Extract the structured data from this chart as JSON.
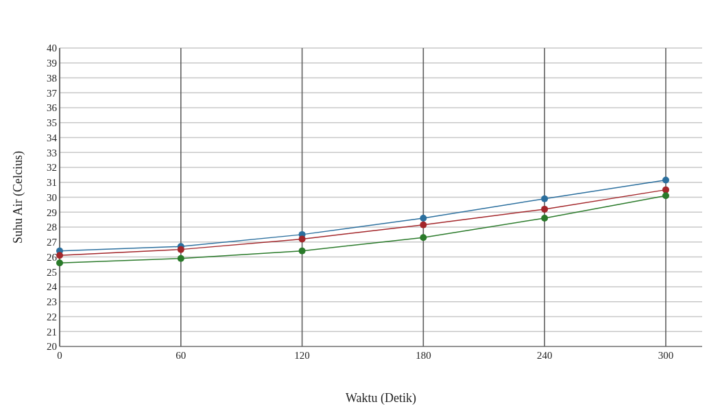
{
  "chart_data": {
    "type": "line",
    "xlabel": "Waktu (Detik)",
    "ylabel": "Suhu Air (Celcius)",
    "x": [
      0,
      60,
      120,
      180,
      240,
      300
    ],
    "series": [
      {
        "color": "#2b6f9e",
        "values": [
          26.4,
          26.7,
          27.5,
          28.6,
          29.9,
          31.15
        ]
      },
      {
        "color": "#a3262a",
        "values": [
          26.1,
          26.5,
          27.2,
          28.15,
          29.2,
          30.5
        ]
      },
      {
        "color": "#2a7a2a",
        "values": [
          25.6,
          25.9,
          26.4,
          27.3,
          28.6,
          30.1
        ]
      }
    ],
    "xlim": [
      0,
      318
    ],
    "xticks": [
      0,
      60,
      120,
      180,
      240,
      300
    ],
    "ylim": [
      20,
      40
    ],
    "yticks": [
      20,
      21,
      22,
      23,
      24,
      25,
      26,
      27,
      28,
      29,
      30,
      31,
      32,
      33,
      34,
      35,
      36,
      37,
      38,
      39,
      40
    ],
    "grid": true,
    "marker": "circle",
    "line_style": "solid"
  }
}
